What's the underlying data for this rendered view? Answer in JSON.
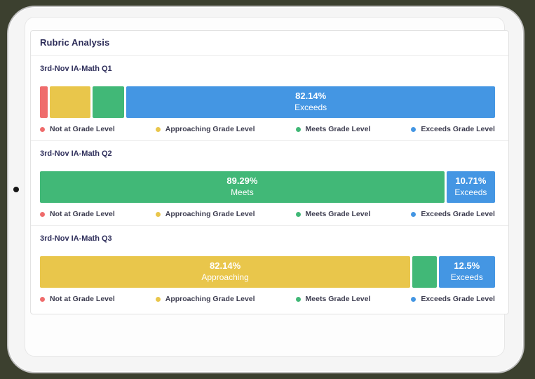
{
  "card": {
    "title": "Rubric Analysis"
  },
  "colors": {
    "not_at": "#EF6C6C",
    "approaching": "#E9C64B",
    "meets": "#41B877",
    "exceeds": "#4496E3"
  },
  "legend": {
    "items": [
      {
        "level": "not_at",
        "label": "Not at Grade Level"
      },
      {
        "level": "approaching",
        "label": "Approaching Grade Level"
      },
      {
        "level": "meets",
        "label": "Meets Grade Level"
      },
      {
        "level": "exceeds",
        "label": "Exceeds Grade Level"
      }
    ]
  },
  "chart_data": [
    {
      "type": "bar",
      "orientation": "horizontal-stacked",
      "title": "3rd-Nov IA-Math Q1",
      "unit": "%",
      "xlim": [
        0,
        100
      ],
      "categories": [
        "Not at Grade Level",
        "Approaching Grade Level",
        "Meets Grade Level",
        "Exceeds Grade Level"
      ],
      "segments": [
        {
          "level": "not_at",
          "value": 1.79,
          "label_value": "",
          "label_name": ""
        },
        {
          "level": "approaching",
          "value": 8.93,
          "label_value": "",
          "label_name": ""
        },
        {
          "level": "meets",
          "value": 7.14,
          "label_value": "",
          "label_name": ""
        },
        {
          "level": "exceeds",
          "value": 82.14,
          "label_value": "82.14%",
          "label_name": "Exceeds"
        }
      ]
    },
    {
      "type": "bar",
      "orientation": "horizontal-stacked",
      "title": "3rd-Nov IA-Math Q2",
      "unit": "%",
      "xlim": [
        0,
        100
      ],
      "categories": [
        "Not at Grade Level",
        "Approaching Grade Level",
        "Meets Grade Level",
        "Exceeds Grade Level"
      ],
      "segments": [
        {
          "level": "meets",
          "value": 89.29,
          "label_value": "89.29%",
          "label_name": "Meets"
        },
        {
          "level": "exceeds",
          "value": 10.71,
          "label_value": "10.71%",
          "label_name": "Exceeds"
        }
      ]
    },
    {
      "type": "bar",
      "orientation": "horizontal-stacked",
      "title": "3rd-Nov IA-Math Q3",
      "unit": "%",
      "xlim": [
        0,
        100
      ],
      "categories": [
        "Not at Grade Level",
        "Approaching Grade Level",
        "Meets Grade Level",
        "Exceeds Grade Level"
      ],
      "segments": [
        {
          "level": "approaching",
          "value": 82.14,
          "label_value": "82.14%",
          "label_name": "Approaching"
        },
        {
          "level": "meets",
          "value": 5.36,
          "label_value": "",
          "label_name": ""
        },
        {
          "level": "exceeds",
          "value": 12.5,
          "label_value": "12.5%",
          "label_name": "Exceeds"
        }
      ]
    }
  ]
}
